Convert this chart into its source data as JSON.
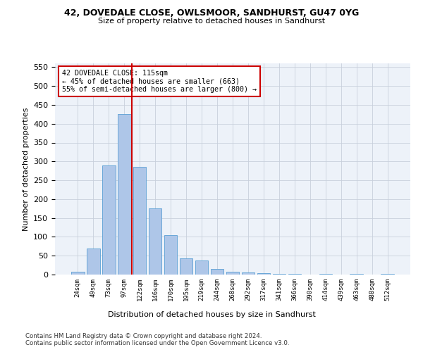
{
  "title1": "42, DOVEDALE CLOSE, OWLSMOOR, SANDHURST, GU47 0YG",
  "title2": "Size of property relative to detached houses in Sandhurst",
  "xlabel": "Distribution of detached houses by size in Sandhurst",
  "ylabel": "Number of detached properties",
  "categories": [
    "24sqm",
    "49sqm",
    "73sqm",
    "97sqm",
    "122sqm",
    "146sqm",
    "170sqm",
    "195sqm",
    "219sqm",
    "244sqm",
    "268sqm",
    "292sqm",
    "317sqm",
    "341sqm",
    "366sqm",
    "390sqm",
    "414sqm",
    "439sqm",
    "463sqm",
    "488sqm",
    "512sqm"
  ],
  "values": [
    7,
    70,
    290,
    425,
    285,
    175,
    105,
    43,
    38,
    15,
    8,
    5,
    3,
    1,
    1,
    0,
    2,
    0,
    1,
    0,
    2
  ],
  "bar_color": "#aec6e8",
  "bar_edge_color": "#5a9fd4",
  "vline_x_index": 4,
  "vline_color": "#cc0000",
  "annotation_text": "42 DOVEDALE CLOSE: 115sqm\n← 45% of detached houses are smaller (663)\n55% of semi-detached houses are larger (800) →",
  "annotation_box_color": "#ffffff",
  "annotation_box_edge": "#cc0000",
  "ylim": [
    0,
    560
  ],
  "yticks": [
    0,
    50,
    100,
    150,
    200,
    250,
    300,
    350,
    400,
    450,
    500,
    550
  ],
  "footer1": "Contains HM Land Registry data © Crown copyright and database right 2024.",
  "footer2": "Contains public sector information licensed under the Open Government Licence v3.0.",
  "bg_color": "#edf2f9",
  "plot_bg_color": "#ffffff",
  "grid_color": "#c8d0dc"
}
